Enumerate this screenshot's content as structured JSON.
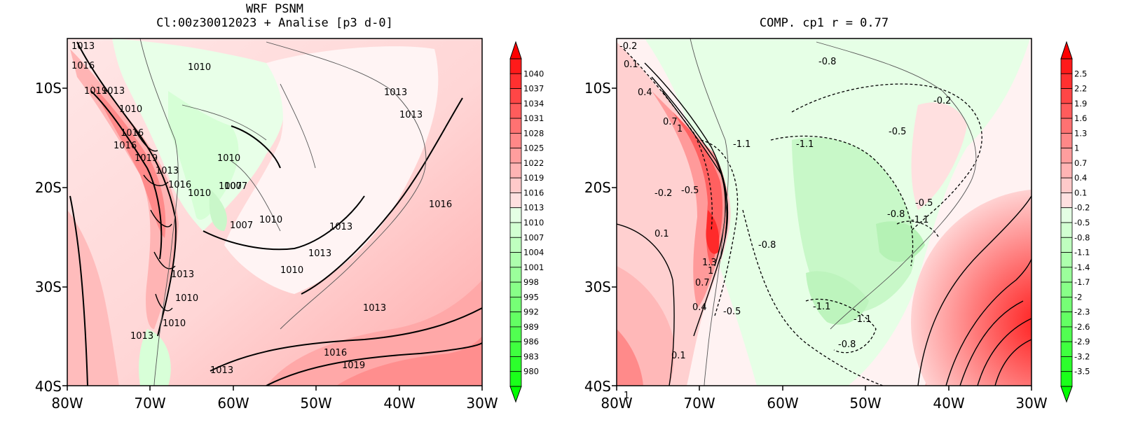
{
  "left_panel": {
    "title_line1": "WRF PSNM",
    "title_line2": "Cl:00z30012023 + Analise  [p3 d-0]",
    "x_ticks": [
      "80W",
      "70W",
      "60W",
      "50W",
      "40W",
      "30W"
    ],
    "y_ticks": [
      "10S",
      "20S",
      "30S",
      "40S"
    ],
    "colorbar_labels": [
      "1040",
      "1037",
      "1034",
      "1031",
      "1028",
      "1025",
      "1022",
      "1019",
      "1016",
      "1013",
      "1010",
      "1007",
      "1004",
      "1001",
      "998",
      "995",
      "992",
      "989",
      "986",
      "983",
      "980"
    ],
    "contour_labels": [
      "1013",
      "1016",
      "1019",
      "1013",
      "1010",
      "1016",
      "1010",
      "1007",
      "1013",
      "1010",
      "1013",
      "1016",
      "1007",
      "1010",
      "1013",
      "1010",
      "1013",
      "1013",
      "1016",
      "1019",
      "1013",
      "1016",
      "1013",
      "1016",
      "1010",
      "1010",
      "1013",
      "1010",
      "1013",
      "1019",
      "1007"
    ]
  },
  "right_panel": {
    "title": "COMP. cp1   r =  0.77",
    "x_ticks": [
      "80W",
      "70W",
      "60W",
      "50W",
      "40W",
      "30W"
    ],
    "y_ticks": [
      "10S",
      "20S",
      "30S",
      "40S"
    ],
    "colorbar_labels": [
      "2.5",
      "2.2",
      "1.9",
      "1.6",
      "1.3",
      "1",
      "0.7",
      "0.4",
      "0.1",
      "-0.2",
      "-0.5",
      "-0.8",
      "-1.1",
      "-1.4",
      "-1.7",
      "-2",
      "-2.3",
      "-2.6",
      "-2.9",
      "-3.2",
      "-3.5"
    ],
    "contour_labels": [
      "-0.2",
      "0.1",
      "0.4",
      "0.7",
      "1",
      "-0.8",
      "-1.1",
      "-1.1",
      "-0.2",
      "-0.5",
      "-0.2",
      "-0.5",
      "0.1",
      "-0.8",
      "1.3",
      "1",
      "0.7",
      "0.4",
      "-0.5",
      "0.1",
      "1",
      "-1.1",
      "-1.1",
      "-0.8",
      "-0.8",
      "-1.1",
      "-0.5"
    ]
  },
  "colors": {
    "red_max": "#ff1a1a",
    "green_max": "#1aff1a",
    "pale_red": "#ffe0e0",
    "pale_green": "#e4ffe4"
  }
}
